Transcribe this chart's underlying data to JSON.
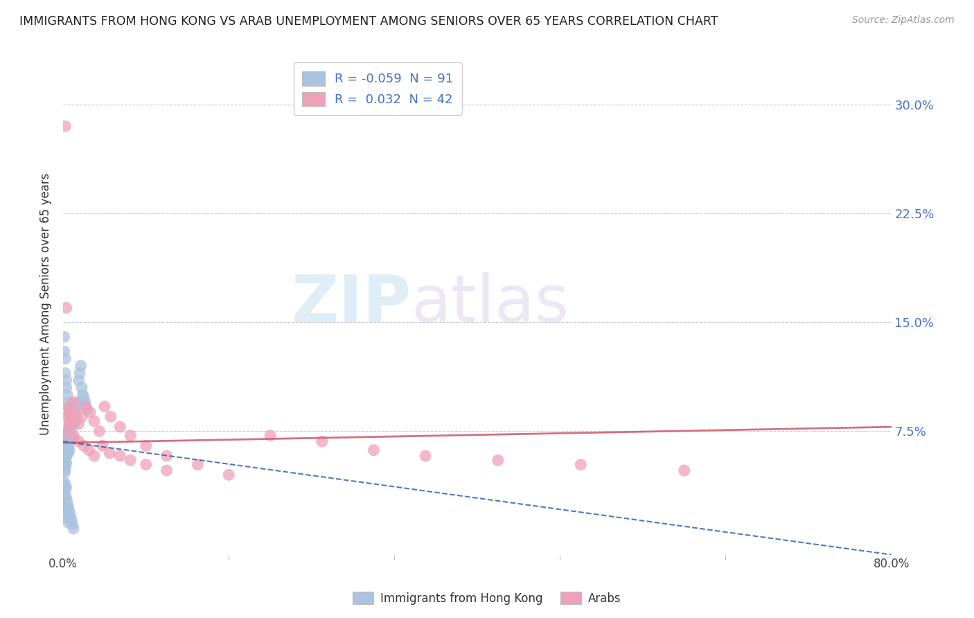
{
  "title": "IMMIGRANTS FROM HONG KONG VS ARAB UNEMPLOYMENT AMONG SENIORS OVER 65 YEARS CORRELATION CHART",
  "source": "Source: ZipAtlas.com",
  "ylabel": "Unemployment Among Seniors over 65 years",
  "xlim": [
    0.0,
    0.8
  ],
  "ylim": [
    -0.01,
    0.335
  ],
  "y_ticks": [
    0.075,
    0.15,
    0.225,
    0.3
  ],
  "y_tick_labels": [
    "7.5%",
    "15.0%",
    "22.5%",
    "30.0%"
  ],
  "x_ticks": [
    0.0,
    0.8
  ],
  "x_tick_labels": [
    "0.0%",
    "80.0%"
  ],
  "legend_labels": [
    "Immigrants from Hong Kong",
    "Arabs"
  ],
  "R_hk": -0.059,
  "N_hk": 91,
  "R_arab": 0.032,
  "N_arab": 42,
  "blue_color": "#aac4e0",
  "pink_color": "#f0a0b8",
  "blue_line_color": "#3060b0",
  "pink_line_color": "#d06070",
  "watermark_zip": "ZIP",
  "watermark_atlas": "atlas",
  "hk_x": [
    0.0005,
    0.001,
    0.001,
    0.001,
    0.001,
    0.001,
    0.001,
    0.001,
    0.001,
    0.002,
    0.002,
    0.002,
    0.002,
    0.002,
    0.002,
    0.003,
    0.003,
    0.003,
    0.003,
    0.003,
    0.004,
    0.004,
    0.004,
    0.004,
    0.005,
    0.005,
    0.005,
    0.005,
    0.006,
    0.006,
    0.006,
    0.006,
    0.007,
    0.007,
    0.007,
    0.008,
    0.008,
    0.008,
    0.009,
    0.009,
    0.01,
    0.01,
    0.01,
    0.011,
    0.011,
    0.012,
    0.012,
    0.013,
    0.013,
    0.014,
    0.015,
    0.015,
    0.016,
    0.017,
    0.018,
    0.019,
    0.02,
    0.021,
    0.022,
    0.023,
    0.001,
    0.001,
    0.002,
    0.002,
    0.003,
    0.003,
    0.004,
    0.005,
    0.006,
    0.007,
    0.001,
    0.002,
    0.003,
    0.001,
    0.002,
    0.002,
    0.003,
    0.003,
    0.004,
    0.004,
    0.005,
    0.001,
    0.002,
    0.003,
    0.004,
    0.005,
    0.006,
    0.007,
    0.008,
    0.009,
    0.01
  ],
  "hk_y": [
    0.073,
    0.065,
    0.068,
    0.072,
    0.058,
    0.055,
    0.052,
    0.05,
    0.048,
    0.062,
    0.059,
    0.056,
    0.053,
    0.05,
    0.047,
    0.067,
    0.064,
    0.06,
    0.057,
    0.053,
    0.072,
    0.068,
    0.064,
    0.06,
    0.075,
    0.07,
    0.065,
    0.06,
    0.08,
    0.074,
    0.068,
    0.062,
    0.083,
    0.076,
    0.069,
    0.086,
    0.078,
    0.07,
    0.088,
    0.079,
    0.09,
    0.08,
    0.07,
    0.091,
    0.081,
    0.092,
    0.082,
    0.093,
    0.083,
    0.094,
    0.11,
    0.095,
    0.115,
    0.12,
    0.105,
    0.1,
    0.098,
    0.095,
    0.092,
    0.09,
    0.14,
    0.13,
    0.125,
    0.115,
    0.11,
    0.105,
    0.1,
    0.095,
    0.09,
    0.085,
    0.04,
    0.038,
    0.036,
    0.03,
    0.028,
    0.025,
    0.022,
    0.02,
    0.018,
    0.015,
    0.012,
    0.035,
    0.032,
    0.029,
    0.026,
    0.023,
    0.02,
    0.017,
    0.014,
    0.011,
    0.008
  ],
  "arab_x": [
    0.002,
    0.003,
    0.004,
    0.005,
    0.006,
    0.008,
    0.01,
    0.012,
    0.015,
    0.018,
    0.022,
    0.026,
    0.03,
    0.035,
    0.04,
    0.046,
    0.055,
    0.065,
    0.08,
    0.1,
    0.13,
    0.16,
    0.2,
    0.25,
    0.3,
    0.35,
    0.42,
    0.5,
    0.6,
    0.003,
    0.006,
    0.01,
    0.015,
    0.02,
    0.025,
    0.03,
    0.038,
    0.045,
    0.055,
    0.065,
    0.08,
    0.1
  ],
  "arab_y": [
    0.285,
    0.16,
    0.085,
    0.092,
    0.088,
    0.082,
    0.095,
    0.088,
    0.08,
    0.085,
    0.092,
    0.088,
    0.082,
    0.075,
    0.092,
    0.085,
    0.078,
    0.072,
    0.065,
    0.058,
    0.052,
    0.045,
    0.072,
    0.068,
    0.062,
    0.058,
    0.055,
    0.052,
    0.048,
    0.075,
    0.08,
    0.072,
    0.068,
    0.065,
    0.062,
    0.058,
    0.065,
    0.06,
    0.058,
    0.055,
    0.052,
    0.048
  ],
  "arab_line_x0": 0.0,
  "arab_line_y0": 0.067,
  "arab_line_x1": 0.8,
  "arab_line_y1": 0.078,
  "hk_line_x0": 0.0,
  "hk_line_y0": 0.068,
  "hk_line_x1": 0.8,
  "hk_line_y1": -0.01
}
